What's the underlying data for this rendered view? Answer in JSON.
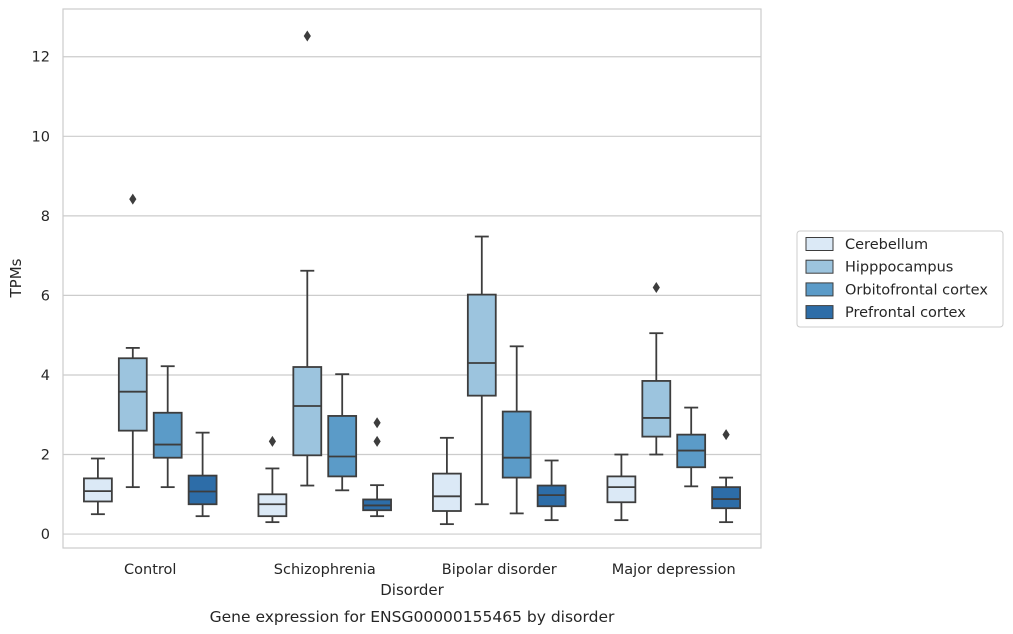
{
  "chart_data": {
    "type": "box",
    "caption": "Gene expression for ENSG00000155465 by disorder",
    "xlabel": "Disorder",
    "ylabel": "TPMs",
    "ylim": [
      -0.35,
      13.2
    ],
    "yticks": [
      0,
      2,
      4,
      6,
      8,
      10,
      12
    ],
    "grid": "horizontal",
    "legend_position": "right",
    "categories": [
      "Control",
      "Schizophrenia",
      "Bipolar disorder",
      "Major depression"
    ],
    "series": [
      {
        "name": "Cerebellum",
        "color": "#dbe9f6",
        "boxes": [
          {
            "whislo": 0.5,
            "q1": 0.82,
            "med": 1.08,
            "q3": 1.4,
            "whishi": 1.9,
            "fliers": []
          },
          {
            "whislo": 0.3,
            "q1": 0.45,
            "med": 0.75,
            "q3": 1.0,
            "whishi": 1.65,
            "fliers": [
              2.33
            ]
          },
          {
            "whislo": 0.25,
            "q1": 0.58,
            "med": 0.95,
            "q3": 1.52,
            "whishi": 2.42,
            "fliers": []
          },
          {
            "whislo": 0.35,
            "q1": 0.8,
            "med": 1.18,
            "q3": 1.45,
            "whishi": 2.0,
            "fliers": []
          }
        ]
      },
      {
        "name": "Hipppocampus",
        "color": "#9cc4de",
        "boxes": [
          {
            "whislo": 1.18,
            "q1": 2.6,
            "med": 3.58,
            "q3": 4.42,
            "whishi": 4.68,
            "fliers": [
              8.42
            ]
          },
          {
            "whislo": 1.22,
            "q1": 1.98,
            "med": 3.22,
            "q3": 4.2,
            "whishi": 6.62,
            "fliers": [
              12.52
            ]
          },
          {
            "whislo": 0.75,
            "q1": 3.48,
            "med": 4.3,
            "q3": 6.02,
            "whishi": 7.48,
            "fliers": []
          },
          {
            "whislo": 2.0,
            "q1": 2.45,
            "med": 2.92,
            "q3": 3.85,
            "whishi": 5.05,
            "fliers": [
              6.2
            ]
          }
        ]
      },
      {
        "name": "Orbitofrontal cortex",
        "color": "#5b9bc8",
        "boxes": [
          {
            "whislo": 1.18,
            "q1": 1.92,
            "med": 2.25,
            "q3": 3.05,
            "whishi": 4.22,
            "fliers": []
          },
          {
            "whislo": 1.1,
            "q1": 1.45,
            "med": 1.95,
            "q3": 2.97,
            "whishi": 4.02,
            "fliers": []
          },
          {
            "whislo": 0.52,
            "q1": 1.42,
            "med": 1.92,
            "q3": 3.08,
            "whishi": 4.72,
            "fliers": []
          },
          {
            "whislo": 1.2,
            "q1": 1.68,
            "med": 2.1,
            "q3": 2.5,
            "whishi": 3.18,
            "fliers": []
          }
        ]
      },
      {
        "name": "Prefrontal cortex",
        "color": "#2d6da8",
        "boxes": [
          {
            "whislo": 0.45,
            "q1": 0.75,
            "med": 1.07,
            "q3": 1.47,
            "whishi": 2.55,
            "fliers": []
          },
          {
            "whislo": 0.45,
            "q1": 0.6,
            "med": 0.72,
            "q3": 0.87,
            "whishi": 1.23,
            "fliers": [
              2.33,
              2.8
            ]
          },
          {
            "whislo": 0.35,
            "q1": 0.7,
            "med": 0.98,
            "q3": 1.22,
            "whishi": 1.85,
            "fliers": []
          },
          {
            "whislo": 0.3,
            "q1": 0.65,
            "med": 0.88,
            "q3": 1.18,
            "whishi": 1.42,
            "fliers": [
              2.5
            ]
          }
        ]
      }
    ]
  }
}
